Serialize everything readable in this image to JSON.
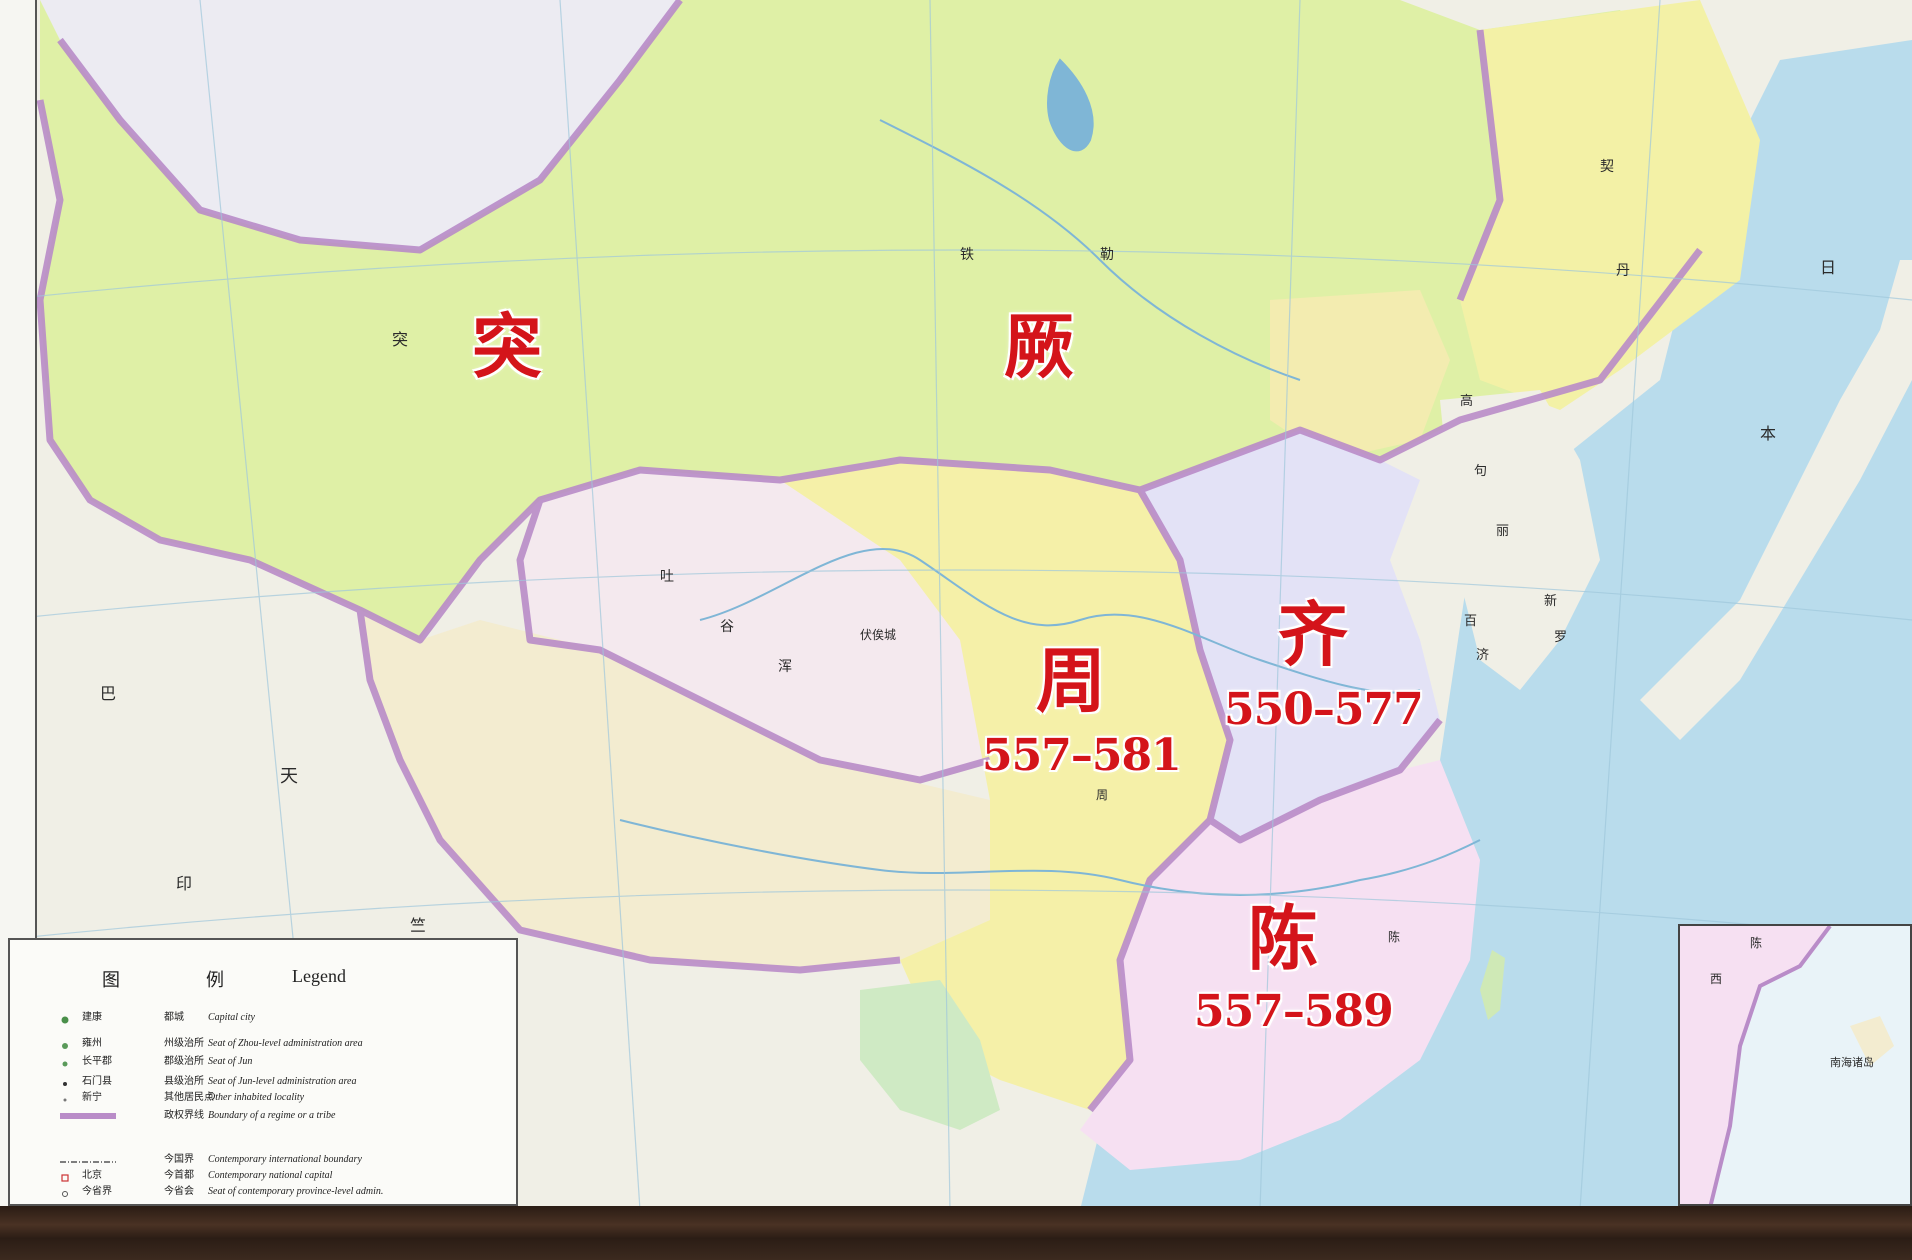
{
  "map": {
    "regions": {
      "tujue": {
        "name": "突",
        "name2": "厥"
      },
      "zhou": {
        "name": "周",
        "years": "557–581"
      },
      "qi": {
        "name": "齐",
        "years": "550–577"
      },
      "chen": {
        "name": "陈",
        "years": "557–589"
      }
    },
    "places": [
      "铁",
      "勒",
      "突",
      "天",
      "印",
      "巴",
      "竺",
      "伏俟城",
      "周",
      "陈",
      "吐",
      "谷",
      "浑",
      "契",
      "丹",
      "高",
      "句",
      "丽",
      "百",
      "济",
      "新",
      "罗",
      "日",
      "本"
    ],
    "colors": {
      "sea": "#b9dcec",
      "tujue": "#dff0a6",
      "zhou": "#f5f0a8",
      "qi": "#e3e2f6",
      "chen": "#f6e0f2",
      "tuyuhun": "#f4e9ee",
      "tibet": "#f3ecd0",
      "west": "#f0efe6",
      "border": "#b98cc8"
    }
  },
  "legend": {
    "title_zh_1": "图",
    "title_zh_2": "例",
    "title_en": "Legend",
    "rows": [
      {
        "zh": "建康",
        "zh2": "都城",
        "en": "Capital city"
      },
      {
        "zh": "雍州",
        "zh2": "州级治所",
        "en": "Seat of Zhou-level administration area"
      },
      {
        "zh": "长平郡",
        "zh2": "郡级治所",
        "en": "Seat of Jun"
      },
      {
        "zh": "石门县",
        "zh2": "县级治所",
        "en": "Seat of Jun-level administration area"
      },
      {
        "zh": "新宁",
        "zh2": "其他居民点",
        "en": "Other inhabited locality"
      },
      {
        "zh": "",
        "zh2": "政权界线",
        "en": "Boundary of a regime or a tribe"
      },
      {
        "zh": "",
        "zh2": "今国界",
        "en": "Contemporary international boundary"
      },
      {
        "zh": "北京",
        "zh2": "今首都",
        "en": "Contemporary national capital"
      },
      {
        "zh": "今省界",
        "zh2": "今省会",
        "en": "Seat of contemporary province-level admin."
      }
    ]
  },
  "inset": {
    "labels": [
      "陈",
      "西",
      "南海诸岛"
    ]
  }
}
